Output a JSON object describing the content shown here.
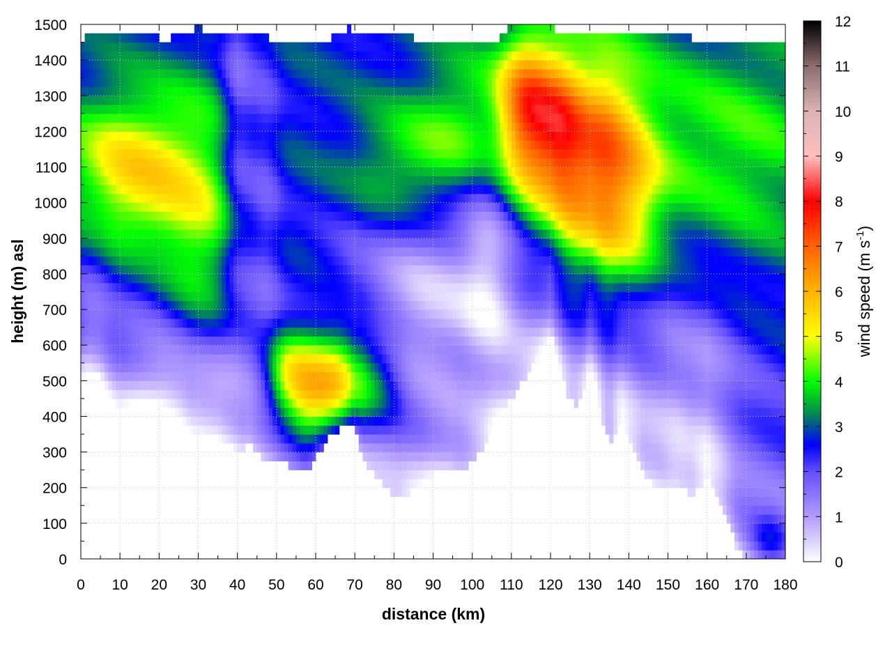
{
  "chart_data": {
    "type": "heatmap",
    "xlabel": "distance (km)",
    "ylabel": "height (m) asl",
    "colorbar_label": "wind speed (m s",
    "colorbar_label_sup": "-1",
    "colorbar_label_end": ")",
    "xlim": [
      0,
      180
    ],
    "ylim": [
      0,
      1500
    ],
    "zlim": [
      0,
      12
    ],
    "x_ticks": [
      "0",
      "10",
      "20",
      "30",
      "40",
      "50",
      "60",
      "70",
      "80",
      "90",
      "100",
      "110",
      "120",
      "130",
      "140",
      "150",
      "160",
      "170",
      "180"
    ],
    "y_ticks": [
      "0",
      "100",
      "200",
      "300",
      "400",
      "500",
      "600",
      "700",
      "800",
      "900",
      "1000",
      "1100",
      "1200",
      "1300",
      "1400",
      "1500"
    ],
    "z_ticks": [
      "0",
      "1",
      "2",
      "3",
      "4",
      "5",
      "6",
      "7",
      "8",
      "9",
      "10",
      "11",
      "12"
    ],
    "grid": true,
    "colormap": [
      {
        "v": 0,
        "c": "#ffffff"
      },
      {
        "v": 1,
        "c": "#b49bff"
      },
      {
        "v": 2,
        "c": "#6450ff"
      },
      {
        "v": 2.6,
        "c": "#0000ff"
      },
      {
        "v": 3.3,
        "c": "#008c50"
      },
      {
        "v": 4,
        "c": "#00ff00"
      },
      {
        "v": 5,
        "c": "#ffff00"
      },
      {
        "v": 6,
        "c": "#ffb400"
      },
      {
        "v": 7,
        "c": "#ff6400"
      },
      {
        "v": 8,
        "c": "#ff0000"
      },
      {
        "v": 9,
        "c": "#ffbebe"
      },
      {
        "v": 10,
        "c": "#dcb4b4"
      },
      {
        "v": 11,
        "c": "#8c6e6e"
      },
      {
        "v": 12,
        "c": "#000000"
      }
    ],
    "terrain_x": [
      0,
      2,
      5,
      8,
      10,
      13,
      17,
      21,
      25,
      28,
      31,
      35,
      38,
      41,
      43,
      46,
      50,
      54,
      57,
      59,
      61,
      64,
      67,
      70,
      72,
      75,
      78,
      81,
      84,
      87,
      90,
      94,
      97,
      100,
      103,
      106,
      109,
      112,
      115,
      117,
      119,
      120,
      122,
      124,
      126,
      128,
      130,
      132,
      133,
      135,
      138,
      141,
      144,
      148,
      152,
      156,
      160,
      162,
      164,
      166,
      168,
      170,
      180
    ],
    "terrain_y": [
      500,
      540,
      520,
      440,
      410,
      420,
      420,
      390,
      330,
      290,
      310,
      340,
      320,
      300,
      320,
      290,
      270,
      260,
      235,
      260,
      300,
      350,
      370,
      380,
      280,
      230,
      200,
      175,
      190,
      210,
      240,
      260,
      250,
      270,
      310,
      380,
      430,
      480,
      530,
      570,
      620,
      640,
      560,
      470,
      430,
      450,
      540,
      470,
      400,
      320,
      400,
      320,
      230,
      200,
      210,
      180,
      230,
      190,
      150,
      80,
      20,
      0,
      0
    ],
    "top_x": [
      0,
      8,
      15,
      22,
      30,
      40,
      50,
      60,
      68,
      75,
      80,
      88,
      90,
      100,
      106,
      110,
      120,
      130,
      140,
      150,
      158,
      163,
      166,
      180
    ],
    "top_y": [
      1460,
      1480,
      1470,
      1460,
      1490,
      1470,
      1460,
      1440,
      1490,
      1470,
      1480,
      1450,
      1440,
      1450,
      1440,
      1500,
      1490,
      1470,
      1470,
      1470,
      1460,
      1450,
      1440,
      1440
    ],
    "features": [
      {
        "x": 5,
        "z": 1100,
        "sx": 10,
        "sz": 150,
        "a": 1.6
      },
      {
        "x": 18,
        "z": 1070,
        "sx": 9,
        "sz": 160,
        "a": 1.9
      },
      {
        "x": 32,
        "z": 950,
        "sx": 8,
        "sz": 250,
        "a": 1.6
      },
      {
        "x": 60,
        "z": 460,
        "sx": 7,
        "sz": 110,
        "a": 3.8
      },
      {
        "x": 52,
        "z": 520,
        "sx": 4,
        "sz": 80,
        "a": 1.4
      },
      {
        "x": 68,
        "z": 520,
        "sx": 5,
        "sz": 120,
        "a": 1.8
      },
      {
        "x": 77,
        "z": 500,
        "sx": 4,
        "sz": 100,
        "a": 1.0
      },
      {
        "x": 85,
        "z": 1100,
        "sx": 12,
        "sz": 120,
        "a": 1.3
      },
      {
        "x": 100,
        "z": 1260,
        "sx": 10,
        "sz": 130,
        "a": 1.1
      },
      {
        "x": 114,
        "z": 1250,
        "sx": 5,
        "sz": 160,
        "a": 3.8
      },
      {
        "x": 122,
        "z": 1200,
        "sx": 4,
        "sz": 160,
        "a": 2.0
      },
      {
        "x": 131,
        "z": 1120,
        "sx": 9,
        "sz": 210,
        "a": 4.0
      },
      {
        "x": 140,
        "z": 950,
        "sx": 6,
        "sz": 150,
        "a": 1.0
      },
      {
        "x": 165,
        "z": 1150,
        "sx": 22,
        "sz": 230,
        "a": 1.3
      },
      {
        "x": 40,
        "z": 1150,
        "sx": 3,
        "sz": 400,
        "a": -1.2
      },
      {
        "x": 47,
        "z": 1000,
        "sx": 3,
        "sz": 400,
        "a": -0.8
      },
      {
        "x": 88,
        "z": 750,
        "sx": 12,
        "sz": 180,
        "a": -1.8
      },
      {
        "x": 104,
        "z": 800,
        "sx": 5,
        "sz": 200,
        "a": -1.5
      },
      {
        "x": 27,
        "z": 470,
        "sx": 8,
        "sz": 120,
        "a": -1.2
      },
      {
        "x": 155,
        "z": 500,
        "sx": 12,
        "sz": 220,
        "a": -1.0
      },
      {
        "x": 176,
        "z": 40,
        "sx": 4,
        "sz": 60,
        "a": 1.6
      }
    ]
  }
}
